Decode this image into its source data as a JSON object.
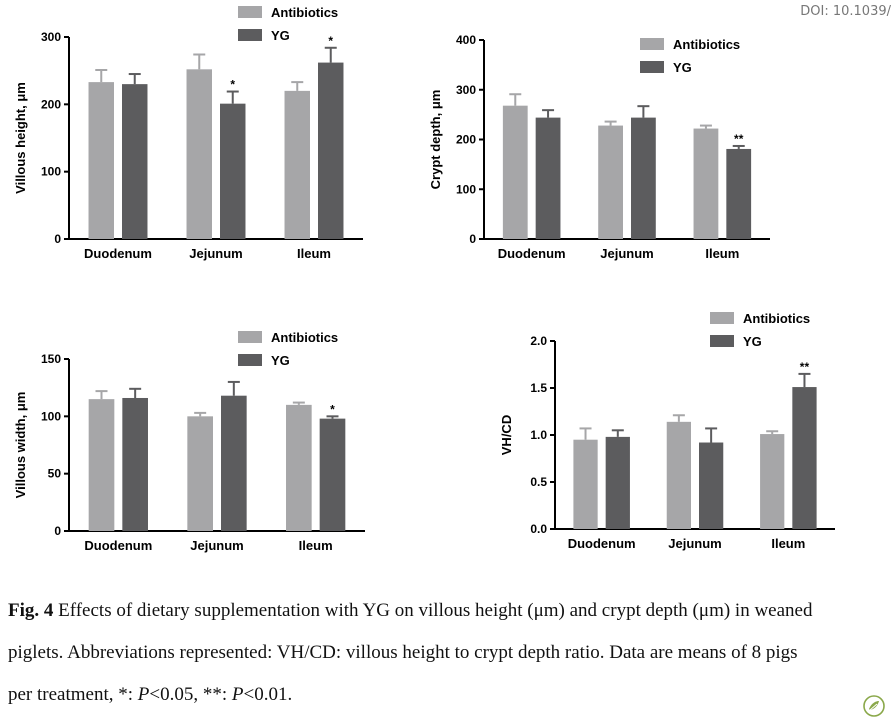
{
  "doi_text": "DOI: 10.1039/",
  "caption": {
    "label": "Fig. 4",
    "line1": " Effects of dietary supplementation with YG on villous height (μm) and crypt depth (μm) in weaned",
    "line2": "piglets. Abbreviations represented: VH/CD: villous height to crypt depth ratio. Data are means of 8 pigs",
    "line3_a": "per treatment, *: ",
    "p1": "P",
    "line3_b": "<0.05, **: ",
    "p2": "P",
    "line3_c": "<0.01."
  },
  "colors": {
    "antibiotics": "#a6a6a8",
    "yg": "#5c5c5e",
    "axis": "#000000"
  },
  "chart_data": [
    {
      "type": "bar",
      "ylabel": "Villous height, μm",
      "ylim": [
        0,
        300
      ],
      "yticks": [
        0,
        100,
        200,
        300
      ],
      "categories": [
        "Duodenum",
        "Jejunum",
        "Ileum"
      ],
      "legend_position": "top",
      "series": [
        {
          "name": "Antibiotics",
          "values": [
            233,
            252,
            220
          ],
          "errors": [
            18,
            22,
            13
          ],
          "sig": [
            "",
            "",
            ""
          ]
        },
        {
          "name": "YG",
          "values": [
            230,
            201,
            262
          ],
          "errors": [
            15,
            18,
            22
          ],
          "sig": [
            "",
            "*",
            "*"
          ]
        }
      ]
    },
    {
      "type": "bar",
      "ylabel": "Crypt depth, μm",
      "ylim": [
        0,
        400
      ],
      "yticks": [
        0,
        100,
        200,
        300,
        400
      ],
      "categories": [
        "Duodenum",
        "Jejunum",
        "Ileum"
      ],
      "legend_position": "top-right",
      "series": [
        {
          "name": "Antibiotics",
          "values": [
            268,
            228,
            222
          ],
          "errors": [
            23,
            8,
            6
          ],
          "sig": [
            "",
            "",
            ""
          ]
        },
        {
          "name": "YG",
          "values": [
            244,
            244,
            181
          ],
          "errors": [
            15,
            23,
            6
          ],
          "sig": [
            "",
            "",
            "**"
          ]
        }
      ]
    },
    {
      "type": "bar",
      "ylabel": "Villous width, μm",
      "ylim": [
        0,
        150
      ],
      "yticks": [
        0,
        50,
        100,
        150
      ],
      "categories": [
        "Duodenum",
        "Jejunum",
        "Ileum"
      ],
      "legend_position": "top",
      "series": [
        {
          "name": "Antibiotics",
          "values": [
            115,
            100,
            110
          ],
          "errors": [
            7,
            3,
            2
          ],
          "sig": [
            "",
            "",
            ""
          ]
        },
        {
          "name": "YG",
          "values": [
            116,
            118,
            98
          ],
          "errors": [
            8,
            12,
            2
          ],
          "sig": [
            "",
            "",
            "*"
          ]
        }
      ]
    },
    {
      "type": "bar",
      "ylabel": "VH/CD",
      "ylim": [
        0,
        2.0
      ],
      "yticks": [
        "0.0",
        "0.5",
        "1.0",
        "1.5",
        "2.0"
      ],
      "categories": [
        "Duodenum",
        "Jejunum",
        "Ileum"
      ],
      "legend_position": "top",
      "series": [
        {
          "name": "Antibiotics",
          "values": [
            0.95,
            1.14,
            1.01
          ],
          "errors": [
            0.12,
            0.07,
            0.03
          ],
          "sig": [
            "",
            "",
            ""
          ]
        },
        {
          "name": "YG",
          "values": [
            0.98,
            0.92,
            1.51
          ],
          "errors": [
            0.07,
            0.15,
            0.14
          ],
          "sig": [
            "",
            "",
            "**"
          ]
        }
      ]
    }
  ]
}
